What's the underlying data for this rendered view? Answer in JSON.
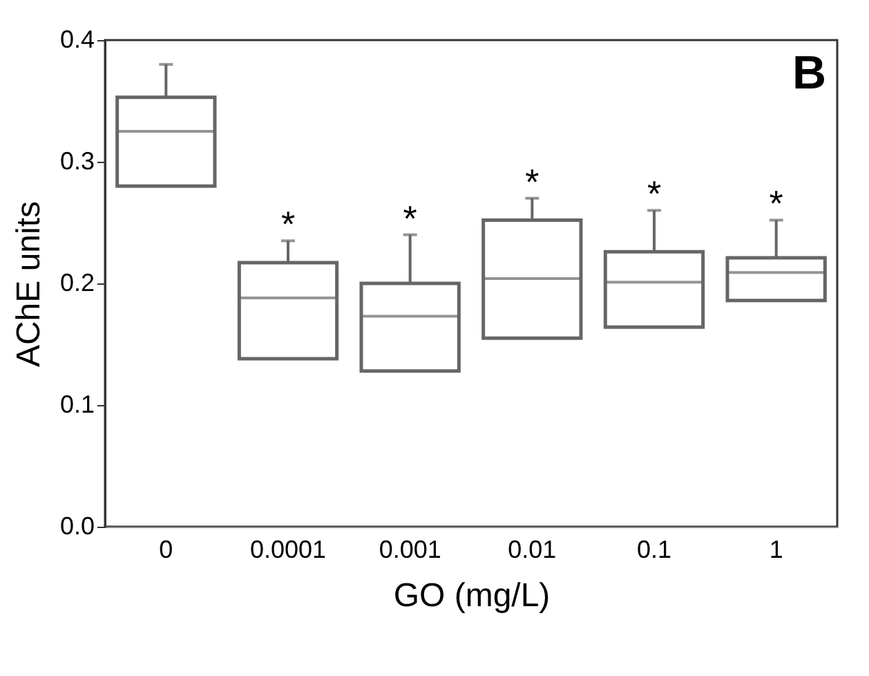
{
  "chart_data": {
    "type": "box",
    "xlabel": "GO (mg/L)",
    "ylabel": "AChE units",
    "categories": [
      "0",
      "0.0001",
      "0.001",
      "0.01",
      "0.1",
      "1"
    ],
    "color": "#666666",
    "boxes": [
      {
        "low": 0.28,
        "q1": 0.28,
        "median": 0.325,
        "q3": 0.353,
        "high": 0.38
      },
      {
        "low": 0.138,
        "q1": 0.138,
        "median": 0.188,
        "q3": 0.217,
        "high": 0.235
      },
      {
        "low": 0.128,
        "q1": 0.128,
        "median": 0.173,
        "q3": 0.2,
        "high": 0.24
      },
      {
        "low": 0.155,
        "q1": 0.155,
        "median": 0.204,
        "q3": 0.252,
        "high": 0.27
      },
      {
        "low": 0.164,
        "q1": 0.164,
        "median": 0.201,
        "q3": 0.226,
        "high": 0.26
      },
      {
        "low": 0.186,
        "q1": 0.186,
        "median": 0.209,
        "q3": 0.221,
        "high": 0.252
      }
    ],
    "ylim": [
      0,
      0.4
    ],
    "yticks": [
      {
        "value": 0,
        "label": "0.0"
      },
      0.1,
      0.2,
      0.3,
      0.4
    ],
    "grid": false,
    "annotations": [
      "*",
      "*",
      "*",
      "*",
      "*",
      "B"
    ]
  }
}
